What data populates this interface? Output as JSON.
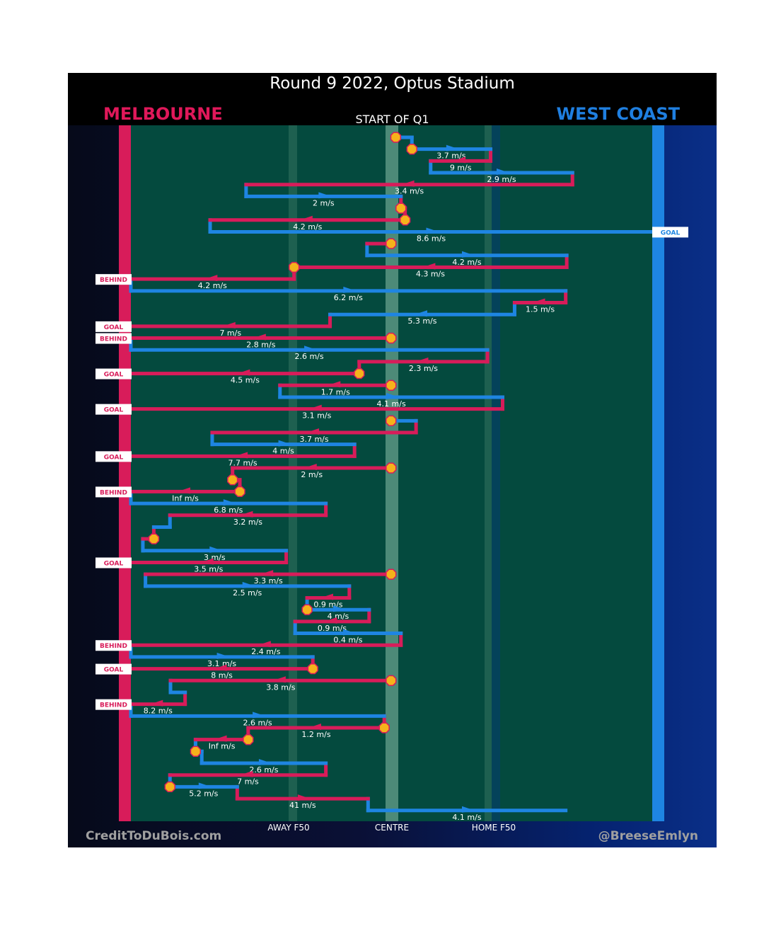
{
  "title": "Round 9 2022, Optus Stadium",
  "home_team": "MELBOURNE",
  "away_team": "WEST COAST",
  "period_label": "START OF Q1",
  "axis_labels": {
    "away_f50": "AWAY F50",
    "centre": "CENTRE",
    "home_f50": "HOME F50"
  },
  "credit": "CreditToDuBois.com",
  "handle": "@BreeseEmlyn",
  "colors": {
    "melbourne": "#d81c5a",
    "west_coast": "#1e85e2",
    "field": "#044a3e",
    "stoppage": "#f6b21b"
  },
  "chart_data": {
    "type": "line",
    "description_units": "x = field position, 0 = Melbourne goal line, 100 = West Coast goal line; y = chain step order",
    "series": [
      {
        "name": "MELBOURNE",
        "color": "#d81c5a"
      },
      {
        "name": "WEST COAST",
        "color": "#1e85e2"
      }
    ],
    "segments": [
      {
        "team": "WC",
        "row": 0,
        "from": 50.8,
        "to": 53.9,
        "label": ""
      },
      {
        "team": "WC",
        "row": 1,
        "from": 53.9,
        "to": 69.0,
        "label": "3.7 m/s"
      },
      {
        "team": "MEL",
        "row": 2,
        "from": 69.0,
        "to": 57.5,
        "label": "9 m/s"
      },
      {
        "team": "WC",
        "row": 3,
        "from": 57.5,
        "to": 84.7,
        "label": "2.9 m/s"
      },
      {
        "team": "MEL",
        "row": 4,
        "from": 84.7,
        "to": 22.1,
        "label": "3.4 m/s"
      },
      {
        "team": "WC",
        "row": 5,
        "from": 22.1,
        "to": 51.8,
        "label": "2 m/s"
      },
      {
        "team": "MEL",
        "row": 6,
        "from": 51.8,
        "to": 52.6,
        "label": ""
      },
      {
        "team": "MEL",
        "row": 7,
        "from": 52.6,
        "to": 15.2,
        "label": "4.2 m/s"
      },
      {
        "team": "WC",
        "row": 8,
        "from": 15.2,
        "to": 100,
        "label": "8.6 m/s",
        "outcome": "GOAL"
      },
      {
        "team": "MEL",
        "row": 9,
        "from": 49.9,
        "to": 45.3,
        "label": ""
      },
      {
        "team": "WC",
        "row": 10,
        "from": 45.3,
        "to": 83.6,
        "label": "4.2 m/s"
      },
      {
        "team": "MEL",
        "row": 11,
        "from": 83.6,
        "to": 31.3,
        "label": "4.3 m/s"
      },
      {
        "team": "MEL",
        "row": 12,
        "from": 31.3,
        "to": 0,
        "label": "4.2 m/s",
        "outcome": "BEHIND"
      },
      {
        "team": "WC",
        "row": 13,
        "from": 0,
        "to": 83.4,
        "label": "6.2 m/s"
      },
      {
        "team": "MEL",
        "row": 14,
        "from": 83.4,
        "to": 73.6,
        "label": "1.5 m/s"
      },
      {
        "team": "WC",
        "row": 15,
        "from": 73.6,
        "to": 38.2,
        "label": "5.3 m/s"
      },
      {
        "team": "MEL",
        "row": 16,
        "from": 38.2,
        "to": 0,
        "label": "7 m/s",
        "outcome": "GOAL"
      },
      {
        "team": "MEL",
        "row": 17,
        "from": 49.9,
        "to": 0,
        "label": "2.8 m/s",
        "outcome": "BEHIND"
      },
      {
        "team": "WC",
        "row": 18,
        "from": 0,
        "to": 68.4,
        "label": "2.6 m/s"
      },
      {
        "team": "MEL",
        "row": 19,
        "from": 68.4,
        "to": 43.8,
        "label": "2.3 m/s"
      },
      {
        "team": "MEL",
        "row": 20,
        "from": 43.8,
        "to": 0,
        "label": "4.5 m/s",
        "outcome": "GOAL"
      },
      {
        "team": "MEL",
        "row": 21,
        "from": 49.9,
        "to": 28.6,
        "label": "1.7 m/s"
      },
      {
        "team": "WC",
        "row": 22,
        "from": 28.6,
        "to": 71.3,
        "label": "4.1 m/s"
      },
      {
        "team": "MEL",
        "row": 23,
        "from": 71.3,
        "to": 0,
        "label": "3.1 m/s",
        "outcome": "GOAL"
      },
      {
        "team": "WC",
        "row": 24,
        "from": 49.9,
        "to": 54.7,
        "label": ""
      },
      {
        "team": "MEL",
        "row": 25,
        "from": 54.7,
        "to": 15.6,
        "label": "3.7 m/s"
      },
      {
        "team": "WC",
        "row": 26,
        "from": 15.6,
        "to": 42.9,
        "label": "4 m/s"
      },
      {
        "team": "MEL",
        "row": 27,
        "from": 42.9,
        "to": 0,
        "label": "7.7 m/s",
        "outcome": "GOAL"
      },
      {
        "team": "MEL",
        "row": 28,
        "from": 49.9,
        "to": 19.5,
        "label": "2 m/s"
      },
      {
        "team": "MEL",
        "row": 29,
        "from": 19.5,
        "to": 20.9,
        "label": ""
      },
      {
        "team": "MEL",
        "row": 30,
        "from": 20.9,
        "to": 0,
        "label": "Inf m/s",
        "outcome": "BEHIND"
      },
      {
        "team": "WC",
        "row": 31,
        "from": 0,
        "to": 37.4,
        "label": "6.8 m/s"
      },
      {
        "team": "MEL",
        "row": 32,
        "from": 37.4,
        "to": 7.5,
        "label": "3.2 m/s"
      },
      {
        "team": "WC",
        "row": 33,
        "from": 7.5,
        "to": 4.4,
        "label": ""
      },
      {
        "team": "MEL",
        "row": 34,
        "from": 4.4,
        "to": 2.3,
        "label": ""
      },
      {
        "team": "WC",
        "row": 35,
        "from": 2.3,
        "to": 29.8,
        "label": "3 m/s"
      },
      {
        "team": "MEL",
        "row": 36,
        "from": 29.8,
        "to": 0,
        "label": "3.5 m/s",
        "outcome": "GOAL"
      },
      {
        "team": "MEL",
        "row": 37,
        "from": 49.9,
        "to": 2.8,
        "label": "3.3 m/s"
      },
      {
        "team": "WC",
        "row": 38,
        "from": 2.8,
        "to": 41.9,
        "label": "2.5 m/s"
      },
      {
        "team": "MEL",
        "row": 39,
        "from": 41.9,
        "to": 33.8,
        "label": "0.9 m/s"
      },
      {
        "team": "WC",
        "row": 40,
        "from": 33.8,
        "to": 45.7,
        "label": "4 m/s"
      },
      {
        "team": "MEL",
        "row": 41,
        "from": 45.7,
        "to": 31.5,
        "label": "0.9 m/s"
      },
      {
        "team": "WC",
        "row": 42,
        "from": 31.5,
        "to": 51.8,
        "label": "0.4 m/s"
      },
      {
        "team": "MEL",
        "row": 43,
        "from": 51.8,
        "to": 0,
        "label": "2.4 m/s",
        "outcome": "BEHIND"
      },
      {
        "team": "WC",
        "row": 44,
        "from": 0,
        "to": 34.9,
        "label": "3.1 m/s"
      },
      {
        "team": "MEL",
        "row": 45,
        "from": 34.9,
        "to": 0,
        "label": "8 m/s",
        "outcome": "GOAL"
      },
      {
        "team": "MEL",
        "row": 46,
        "from": 49.9,
        "to": 7.6,
        "label": "3.8 m/s"
      },
      {
        "team": "WC",
        "row": 47,
        "from": 7.6,
        "to": 10.4,
        "label": ""
      },
      {
        "team": "MEL",
        "row": 48,
        "from": 10.4,
        "to": 0,
        "label": "8.2 m/s",
        "outcome": "BEHIND"
      },
      {
        "team": "WC",
        "row": 49,
        "from": 0,
        "to": 48.6,
        "label": "2.6 m/s"
      },
      {
        "team": "MEL",
        "row": 50,
        "from": 48.6,
        "to": 22.5,
        "label": "1.2 m/s"
      },
      {
        "team": "MEL",
        "row": 51,
        "from": 22.5,
        "to": 12.4,
        "label": "Inf m/s"
      },
      {
        "team": "WC",
        "row": 52,
        "from": 12.4,
        "to": 13.6,
        "label": ""
      },
      {
        "team": "WC",
        "row": 53,
        "from": 13.6,
        "to": 37.4,
        "label": "2.6 m/s"
      },
      {
        "team": "MEL",
        "row": 54,
        "from": 37.4,
        "to": 7.5,
        "label": "7 m/s"
      },
      {
        "team": "WC",
        "row": 55,
        "from": 7.5,
        "to": 20.4,
        "label": "5.2 m/s"
      },
      {
        "team": "MEL",
        "row": 56,
        "from": 20.4,
        "to": 45.5,
        "label": "41 m/s"
      },
      {
        "team": "WC",
        "row": 57,
        "from": 45.5,
        "to": 83.4,
        "label": "4.1 m/s"
      }
    ],
    "stoppages": [
      {
        "row": 0,
        "x": 50.8
      },
      {
        "row": 1,
        "x": 53.9
      },
      {
        "row": 6,
        "x": 51.8
      },
      {
        "row": 7,
        "x": 52.6
      },
      {
        "row": 9,
        "x": 49.9
      },
      {
        "row": 11,
        "x": 31.3
      },
      {
        "row": 17,
        "x": 49.9
      },
      {
        "row": 20,
        "x": 43.8
      },
      {
        "row": 21,
        "x": 49.9
      },
      {
        "row": 24,
        "x": 49.9
      },
      {
        "row": 28,
        "x": 49.9
      },
      {
        "row": 29,
        "x": 19.5
      },
      {
        "row": 30,
        "x": 20.9
      },
      {
        "row": 34,
        "x": 4.4
      },
      {
        "row": 37,
        "x": 49.9
      },
      {
        "row": 40,
        "x": 33.8
      },
      {
        "row": 45,
        "x": 34.9
      },
      {
        "row": 46,
        "x": 49.9
      },
      {
        "row": 50,
        "x": 48.6
      },
      {
        "row": 51,
        "x": 22.5
      },
      {
        "row": 52,
        "x": 12.4
      },
      {
        "row": 55,
        "x": 7.5
      }
    ]
  }
}
